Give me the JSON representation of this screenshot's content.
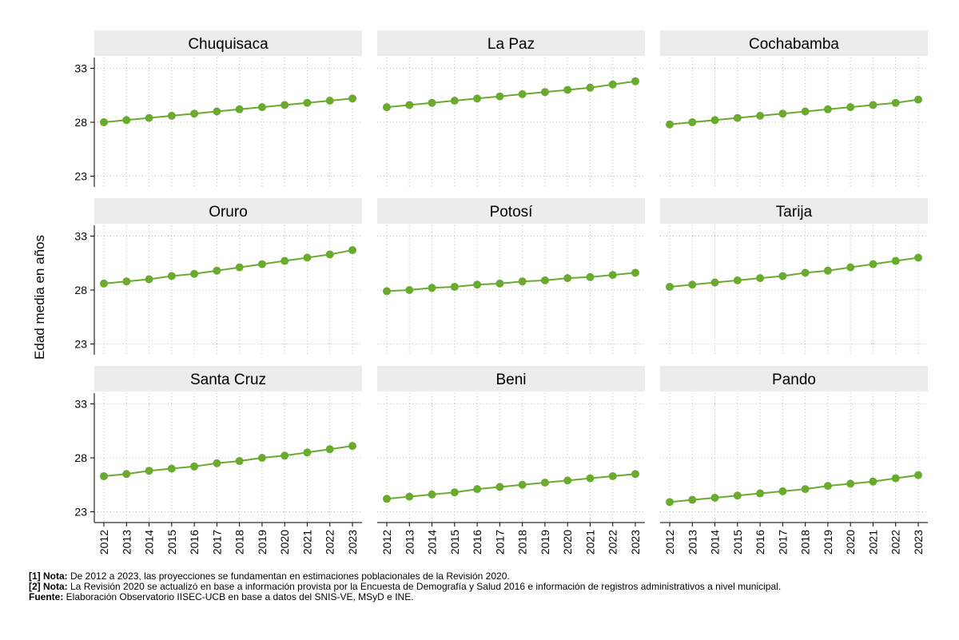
{
  "chart_data": {
    "type": "line",
    "ylabel": "Edad media en años",
    "ylim": [
      22,
      34
    ],
    "yticks": [
      "23",
      "28",
      "33"
    ],
    "x": [
      "2012",
      "2013",
      "2014",
      "2015",
      "2016",
      "2017",
      "2018",
      "2019",
      "2020",
      "2021",
      "2022",
      "2023"
    ],
    "grid": true,
    "series_color": "#6aaa2f",
    "panel_header_color": "#ececec",
    "panels": [
      {
        "name": "Chuquisaca",
        "values": [
          28.0,
          28.2,
          28.4,
          28.6,
          28.8,
          29.0,
          29.2,
          29.4,
          29.6,
          29.8,
          30.0,
          30.2
        ]
      },
      {
        "name": "La Paz",
        "values": [
          29.4,
          29.6,
          29.8,
          30.0,
          30.2,
          30.4,
          30.6,
          30.8,
          31.0,
          31.2,
          31.5,
          31.8
        ]
      },
      {
        "name": "Cochabamba",
        "values": [
          27.8,
          28.0,
          28.2,
          28.4,
          28.6,
          28.8,
          29.0,
          29.2,
          29.4,
          29.6,
          29.8,
          30.1
        ]
      },
      {
        "name": "Oruro",
        "values": [
          28.6,
          28.8,
          29.0,
          29.3,
          29.5,
          29.8,
          30.1,
          30.4,
          30.7,
          31.0,
          31.3,
          31.7
        ]
      },
      {
        "name": "Potosí",
        "values": [
          27.9,
          28.0,
          28.2,
          28.3,
          28.5,
          28.6,
          28.8,
          28.9,
          29.1,
          29.2,
          29.4,
          29.6
        ]
      },
      {
        "name": "Tarija",
        "values": [
          28.3,
          28.5,
          28.7,
          28.9,
          29.1,
          29.3,
          29.6,
          29.8,
          30.1,
          30.4,
          30.7,
          31.0
        ]
      },
      {
        "name": "Santa Cruz",
        "values": [
          26.3,
          26.5,
          26.8,
          27.0,
          27.2,
          27.5,
          27.7,
          28.0,
          28.2,
          28.5,
          28.8,
          29.1
        ]
      },
      {
        "name": "Beni",
        "values": [
          24.2,
          24.4,
          24.6,
          24.8,
          25.1,
          25.3,
          25.5,
          25.7,
          25.9,
          26.1,
          26.3,
          26.5
        ]
      },
      {
        "name": "Pando",
        "values": [
          23.9,
          24.1,
          24.3,
          24.5,
          24.7,
          24.9,
          25.1,
          25.4,
          25.6,
          25.8,
          26.1,
          26.4
        ]
      }
    ]
  },
  "notes": [
    {
      "label": "[1] Nota:",
      "text": " De 2012 a 2023, las proyecciones se fundamentan en estimaciones poblacionales de la Revisión 2020."
    },
    {
      "label": "[2] Nota:",
      "text": " La Revisión 2020 se actualizó en base a información provista por la Encuesta de Demografía y Salud 2016 e información de registros administrativos a nivel municipal."
    },
    {
      "label": "Fuente:",
      "text": " Elaboración Observatorio IISEC-UCB en base a datos del SNIS-VE, MSyD e INE."
    }
  ]
}
